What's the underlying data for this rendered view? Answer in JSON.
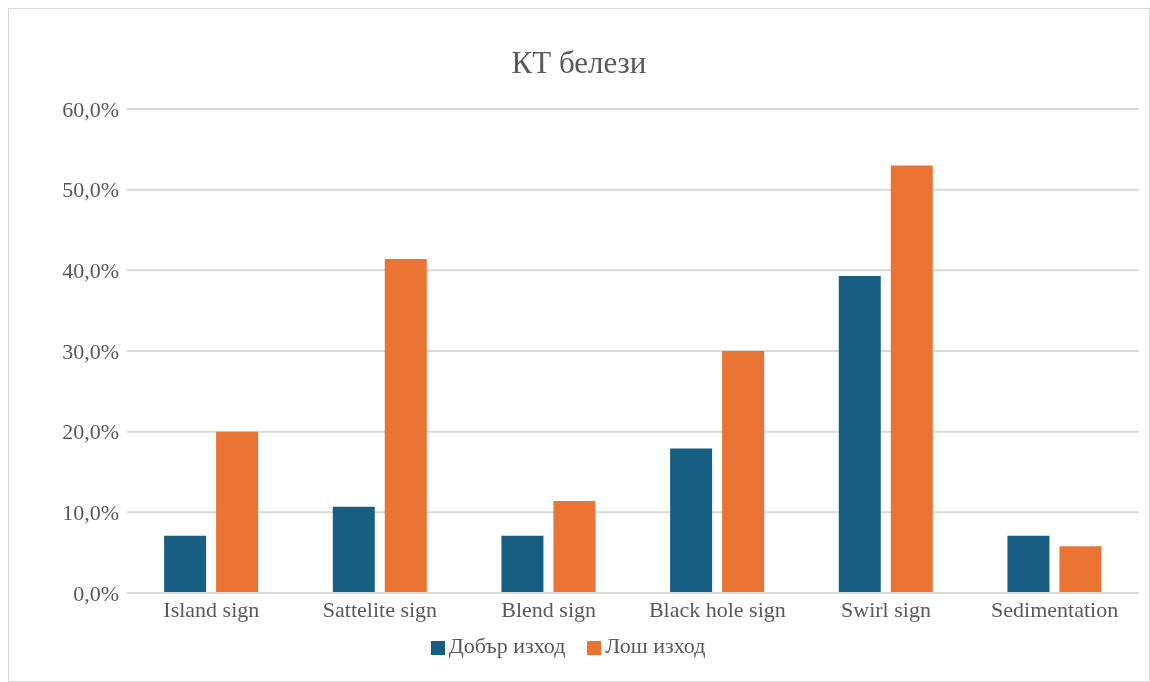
{
  "chart_data": {
    "type": "bar",
    "title": "КТ белези",
    "categories": [
      "Island sign",
      "Sattelite sign",
      "Blend sign",
      "Black hole sign",
      "Swirl sign",
      "Sedimentation"
    ],
    "series": [
      {
        "name": "Добър изход",
        "color": "#175e82",
        "values": [
          7.1,
          10.7,
          7.1,
          17.9,
          39.3,
          7.1
        ]
      },
      {
        "name": "Лош изход",
        "color": "#e97434",
        "values": [
          20.0,
          41.4,
          11.4,
          30.0,
          53.0,
          5.8
        ]
      }
    ],
    "ylim": [
      0,
      60
    ],
    "yticks": [
      {
        "value": 0,
        "label": "0,0%"
      },
      {
        "value": 10,
        "label": "10,0%"
      },
      {
        "value": 20,
        "label": "20,0%"
      },
      {
        "value": 30,
        "label": "30,0%"
      },
      {
        "value": 40,
        "label": "40,0%"
      },
      {
        "value": 50,
        "label": "50,0%"
      },
      {
        "value": 60,
        "label": "60,0%"
      }
    ],
    "grid": "y",
    "legend": "bottom"
  }
}
